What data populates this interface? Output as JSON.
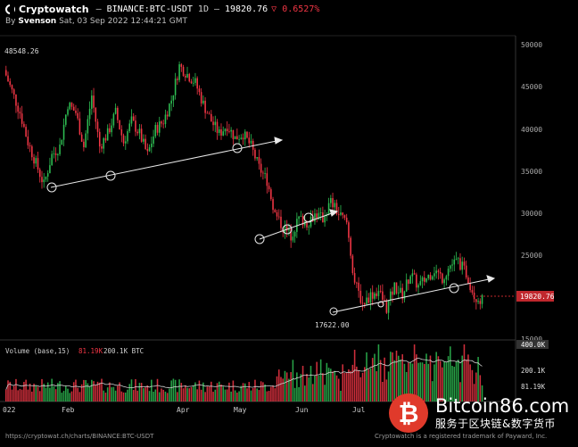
{
  "header": {
    "brand": "Cryptowatch",
    "separator": "—",
    "symbol": "BINANCE:BTC-USDT",
    "interval": "1D",
    "price": "19820.76",
    "change": "▽ 0.6527%"
  },
  "subheader": {
    "prefix": "By",
    "author": "Svenson",
    "datetime": "Sat, 03 Sep 2022 12:44:21 GMT"
  },
  "price_axis": {
    "ticks": [
      "50000",
      "45000",
      "40000",
      "35000",
      "30000",
      "25000",
      "20000",
      "15000"
    ],
    "last_price_label": "19820.76",
    "high_label": "48548.26",
    "low_label": "17622.00"
  },
  "volume_panel": {
    "label": "Volume (base,15)",
    "value1": "81.19K",
    "value2": "200.1K BTC",
    "ticks": [
      "400.0K",
      "200.1K",
      "81.19K"
    ]
  },
  "x_axis": {
    "labels": [
      "022",
      "Feb",
      "Apr",
      "May",
      "Jun",
      "Jul"
    ]
  },
  "footer": {
    "url": "https://cryptowat.ch/charts/BINANCE:BTC-USDT",
    "trademark": "Cryptowatch is a registered trademark of Payward, Inc."
  },
  "watermark": {
    "site": "Bitcoin86.com",
    "tagline": "服务于区块链&数字货币",
    "logo_glyph": "₿"
  },
  "colors": {
    "up": "#2ebd52",
    "down": "#f23645",
    "background": "#000000",
    "price_tag": "#c0272d",
    "trendline": "#ffffff"
  },
  "chart_data": {
    "type": "candlestick",
    "title": "",
    "y_unit": "USDT",
    "ylim": [
      15000,
      52000
    ],
    "x": [
      "Feb",
      "Apr",
      "May",
      "Jun",
      "Jul"
    ],
    "key_points": [
      {
        "label": "48548.26",
        "value": 48548.26
      },
      {
        "label": "17622.00",
        "value": 17622.0
      },
      {
        "label": "19820.76",
        "value": 19820.76
      }
    ],
    "close_path": [
      47000,
      44500,
      42000,
      38500,
      36000,
      33500,
      37000,
      38000,
      43000,
      42000,
      38000,
      44000,
      38000,
      39500,
      42000,
      38500,
      41000,
      39500,
      37000,
      40000,
      41000,
      43500,
      47500,
      46500,
      45500,
      43000,
      41000,
      39500,
      40500,
      39000,
      39500,
      38000,
      35500,
      34000,
      30000,
      28500,
      27500,
      29500,
      29000,
      30000,
      29500,
      31500,
      30000,
      29000,
      22000,
      19500,
      20500,
      21000,
      19000,
      21500,
      20500,
      23000,
      21500,
      22500,
      23500,
      22500,
      24000,
      24500,
      23000,
      20500,
      19820.76
    ],
    "volume": {
      "ylim": [
        0,
        400000
      ],
      "ticks": [
        81190,
        200100,
        400000
      ]
    }
  }
}
